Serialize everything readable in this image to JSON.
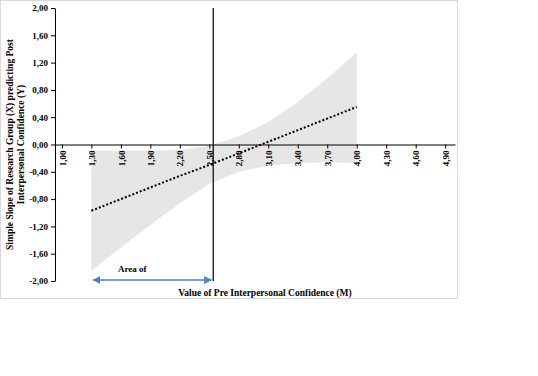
{
  "chart_data": {
    "type": "line",
    "x": [
      1.3,
      1.6,
      1.9,
      2.2,
      2.5,
      2.8,
      3.1,
      3.4,
      3.7,
      4.0
    ],
    "values": [
      -0.97,
      -0.8,
      -0.63,
      -0.46,
      -0.3,
      -0.13,
      0.04,
      0.21,
      0.38,
      0.55
    ],
    "lower": [
      -1.85,
      -1.51,
      -1.18,
      -0.86,
      -0.58,
      -0.4,
      -0.31,
      -0.27,
      -0.26,
      -0.27
    ],
    "upper": [
      -0.09,
      -0.09,
      -0.09,
      -0.08,
      -0.02,
      0.12,
      0.33,
      0.62,
      0.97,
      1.35
    ],
    "color": "#000000",
    "line_style": "dotted",
    "reference_line_x": 2.54,
    "annotation": {
      "text": "Area of",
      "x": [
        1.3,
        2.54
      ]
    },
    "x_label": "Value of Pre Interpersonal Confidence (M)",
    "y_label": [
      "Simple Slope of Research Group (X) predicting Post",
      "Interpersonal Confidence (Y)"
    ],
    "xlim": [
      0.93,
      5.0
    ],
    "xticks": [
      {
        "value": 1.0,
        "label": "1,00"
      },
      {
        "value": 1.3,
        "label": "1,30"
      },
      {
        "value": 1.6,
        "label": "1,60"
      },
      {
        "value": 1.9,
        "label": "1,90"
      },
      {
        "value": 2.2,
        "label": "2,20"
      },
      {
        "value": 2.5,
        "label": "2,50"
      },
      {
        "value": 2.8,
        "label": "2,80"
      },
      {
        "value": 3.1,
        "label": "3,10"
      },
      {
        "value": 3.4,
        "label": "3,40"
      },
      {
        "value": 3.7,
        "label": "3,70"
      },
      {
        "value": 4.0,
        "label": "4,00"
      },
      {
        "value": 4.3,
        "label": "4,30"
      },
      {
        "value": 4.6,
        "label": "4,60"
      },
      {
        "value": 4.9,
        "label": "4,90"
      }
    ],
    "ylim": [
      -2.0,
      2.0
    ],
    "yticks": [
      {
        "value": 2.0,
        "label": "2,00"
      },
      {
        "value": 1.6,
        "label": "1,60"
      },
      {
        "value": 1.2,
        "label": "1,20"
      },
      {
        "value": 0.8,
        "label": "0,80"
      },
      {
        "value": 0.4,
        "label": "0,40"
      },
      {
        "value": 0.0,
        "label": "0,00"
      },
      {
        "value": -0.4,
        "label": "-0,40"
      },
      {
        "value": -0.8,
        "label": "-0,80"
      },
      {
        "value": -1.2,
        "label": "-1,20"
      },
      {
        "value": -1.6,
        "label": "-1,60"
      },
      {
        "value": -2.0,
        "label": "-2,00"
      }
    ],
    "grid": false
  }
}
